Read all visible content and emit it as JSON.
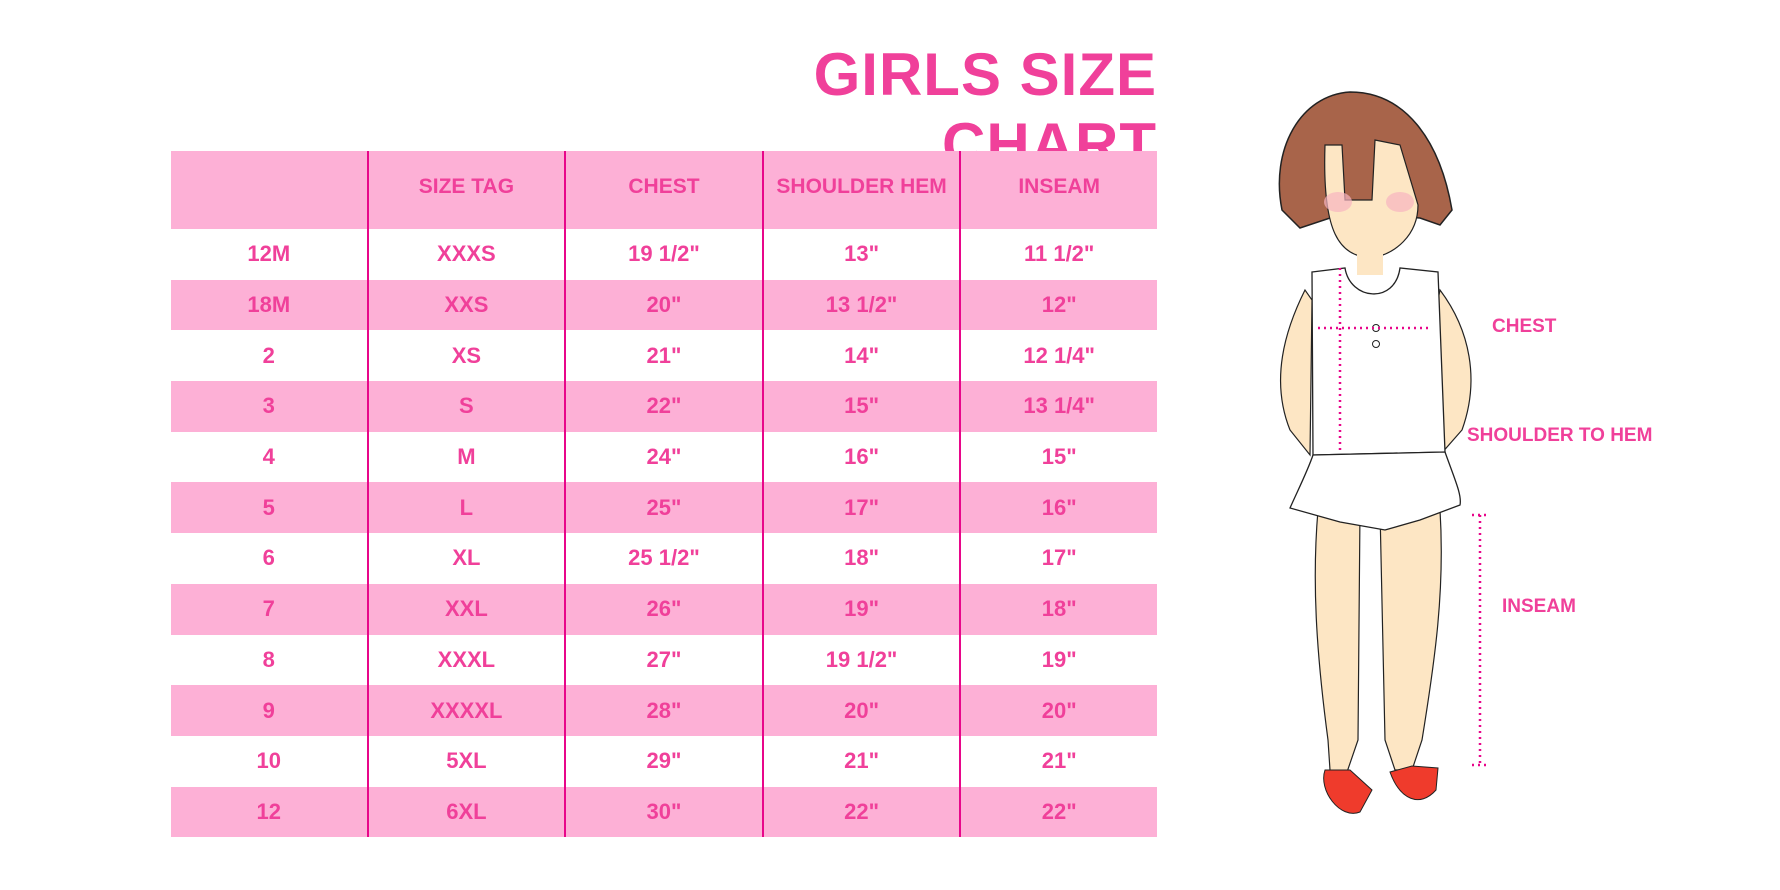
{
  "title": "GIRLS SIZE CHART",
  "table": {
    "headers": [
      "",
      "SIZE TAG",
      "CHEST",
      "SHOULDER HEM",
      "INSEAM"
    ],
    "rows": [
      [
        "12M",
        "XXXS",
        "19 1/2\"",
        "13\"",
        "11 1/2\""
      ],
      [
        "18M",
        "XXS",
        "20\"",
        "13 1/2\"",
        "12\""
      ],
      [
        "2",
        "XS",
        "21\"",
        "14\"",
        "12 1/4\""
      ],
      [
        "3",
        "S",
        "22\"",
        "15\"",
        "13 1/4\""
      ],
      [
        "4",
        "M",
        "24\"",
        "16\"",
        "15\""
      ],
      [
        "5",
        "L",
        "25\"",
        "17\"",
        "16\""
      ],
      [
        "6",
        "XL",
        "25 1/2\"",
        "18\"",
        "17\""
      ],
      [
        "7",
        "XXL",
        "26\"",
        "19\"",
        "18\""
      ],
      [
        "8",
        "XXXL",
        "27\"",
        "19 1/2\"",
        "19\""
      ],
      [
        "9",
        "XXXXL",
        "28\"",
        "20\"",
        "20\""
      ],
      [
        "10",
        "5XL",
        "29\"",
        "21\"",
        "21\""
      ],
      [
        "12",
        "6XL",
        "30\"",
        "22\"",
        "22\""
      ]
    ]
  },
  "figure": {
    "labels": {
      "chest": "CHEST",
      "shoulder_to_hem": "SHOULDER TO HEM",
      "inseam": "INSEAM"
    }
  },
  "colors": {
    "text": "#f0409a",
    "band": "#fdb0d6",
    "divider": "#e8068a"
  }
}
